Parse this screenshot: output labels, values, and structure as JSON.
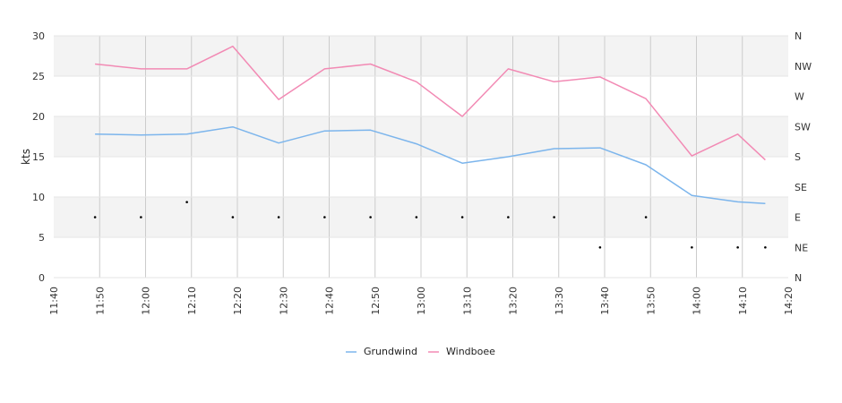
{
  "chart_data": {
    "type": "line",
    "ylabel": "kts",
    "ylim": [
      0,
      30
    ],
    "y_ticks": [
      0,
      5,
      10,
      15,
      20,
      25,
      30
    ],
    "x_range": [
      "11:40",
      "14:20"
    ],
    "x_ticks": [
      "11:40",
      "11:50",
      "12:00",
      "12:10",
      "12:20",
      "12:30",
      "12:40",
      "12:50",
      "13:00",
      "13:10",
      "13:20",
      "13:30",
      "13:40",
      "13:50",
      "14:00",
      "14:10",
      "14:20"
    ],
    "x": [
      "11:49",
      "11:59",
      "12:09",
      "12:19",
      "12:29",
      "12:39",
      "12:49",
      "12:59",
      "13:09",
      "13:19",
      "13:29",
      "13:39",
      "13:49",
      "13:59",
      "14:09",
      "14:15"
    ],
    "series": [
      {
        "name": "Grundwind",
        "color": "#7cb5ec",
        "values": [
          17.8,
          17.7,
          17.8,
          18.7,
          16.7,
          18.2,
          18.3,
          16.6,
          14.2,
          15.0,
          16.0,
          16.1,
          14.0,
          10.2,
          9.4,
          9.2
        ]
      },
      {
        "name": "Windboee",
        "color": "#f28ab4",
        "values": [
          26.5,
          25.9,
          25.9,
          28.7,
          22.1,
          25.9,
          26.5,
          24.3,
          20.0,
          25.9,
          24.3,
          24.9,
          22.2,
          15.1,
          17.8,
          14.6
        ]
      }
    ],
    "direction_axis": {
      "labels": [
        "N",
        "NE",
        "E",
        "SE",
        "S",
        "SW",
        "W",
        "NW",
        "N"
      ],
      "marker_values": [
        "E",
        "E",
        "ESE",
        "E",
        "E",
        "E",
        "E",
        "E",
        "E",
        "E",
        "E",
        "NE",
        "E",
        "NE",
        "NE",
        "NE"
      ]
    },
    "grid": true,
    "legend_position": "bottom-center"
  }
}
